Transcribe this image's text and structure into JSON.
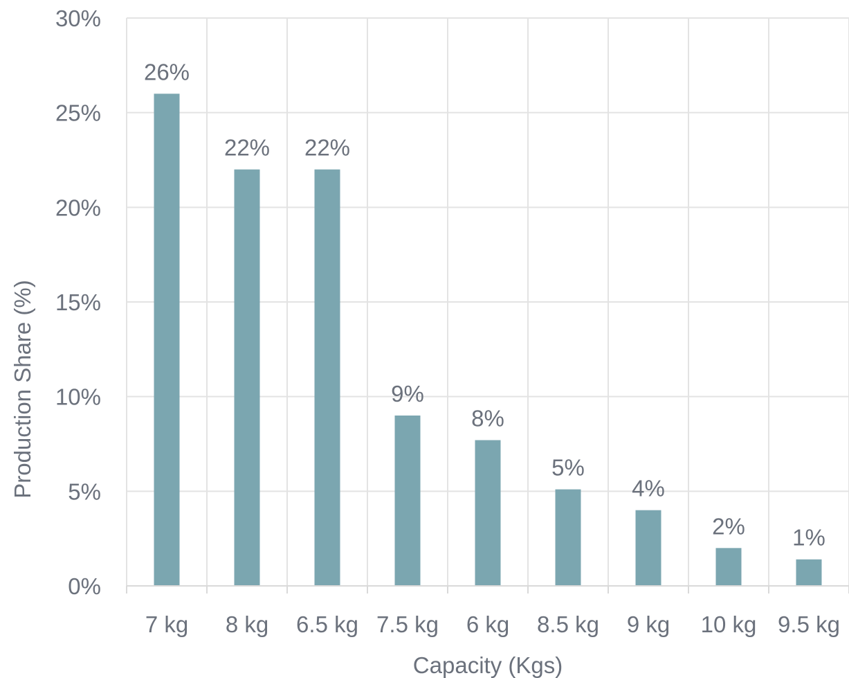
{
  "chart_data": {
    "type": "bar",
    "categories": [
      "7 kg",
      "8 kg",
      "6.5 kg",
      "7.5 kg",
      "6 kg",
      "8.5 kg",
      "9 kg",
      "10 kg",
      "9.5 kg"
    ],
    "values": [
      26,
      22,
      22,
      9,
      7.7,
      5.1,
      4,
      2,
      1.4
    ],
    "data_labels": [
      "26%",
      "22%",
      "22%",
      "9%",
      "8%",
      "5%",
      "4%",
      "2%",
      "1%"
    ],
    "xlabel": "Capacity (Kgs)",
    "ylabel": "Production Share (%)",
    "ylim": [
      0,
      30
    ],
    "yticks": [
      0,
      5,
      10,
      15,
      20,
      25,
      30
    ],
    "ytick_labels": [
      "0%",
      "5%",
      "10%",
      "15%",
      "20%",
      "25%",
      "30%"
    ],
    "grid": true,
    "legend": "none",
    "colors": {
      "bar": "#7ba6b0",
      "grid": "#e3e3e3",
      "axis": "#d9d9d9",
      "text": "#6b717c"
    }
  }
}
